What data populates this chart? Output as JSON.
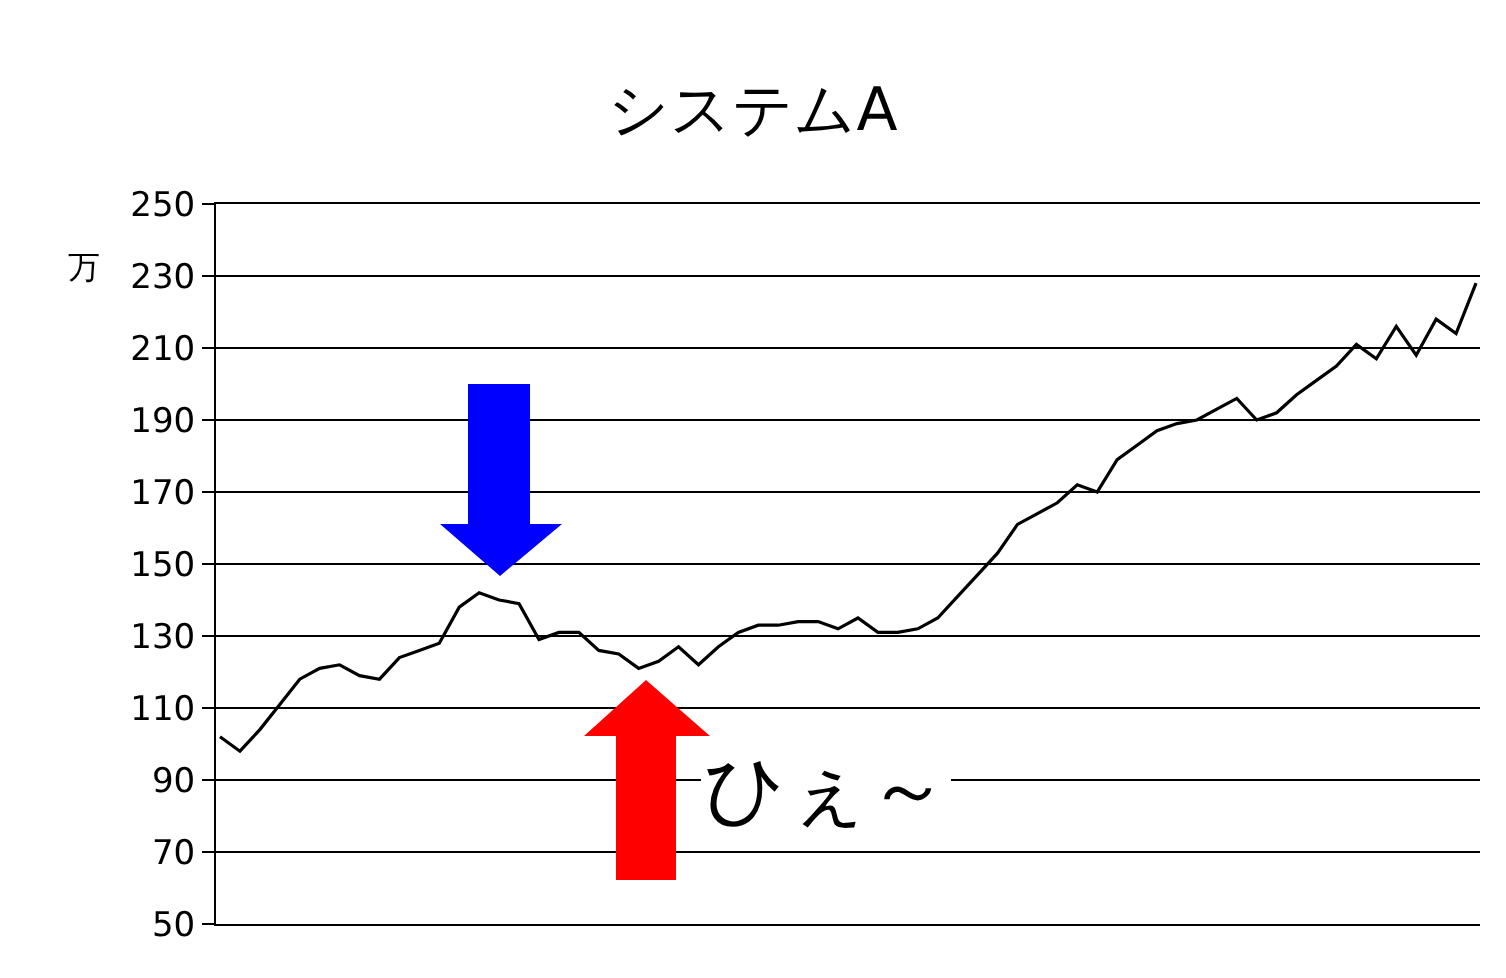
{
  "chart_data": {
    "type": "line",
    "title": "システムA",
    "ylabel": "万",
    "annotations": [
      "ひぇ～"
    ],
    "categories": [
      null,
      null,
      null,
      null,
      null,
      null,
      null,
      null,
      null,
      null,
      null,
      null,
      null,
      null,
      null,
      null,
      null,
      null,
      null,
      null,
      null,
      null,
      null,
      null,
      null,
      null,
      null,
      null,
      null,
      null,
      null,
      null,
      null,
      null,
      null,
      null,
      null,
      null,
      null,
      null,
      null,
      null,
      null,
      null,
      null,
      null,
      null,
      null,
      null,
      null,
      null,
      null,
      null,
      null,
      null,
      null,
      null,
      null,
      null,
      null,
      null,
      null,
      null,
      null
    ],
    "series": [
      {
        "color": "#000000",
        "values": [
          102,
          98,
          104,
          111,
          118,
          121,
          122,
          119,
          118,
          124,
          126,
          128,
          138,
          142,
          140,
          139,
          129,
          131,
          131,
          126,
          125,
          121,
          123,
          127,
          122,
          127,
          131,
          133,
          133,
          134,
          134,
          132,
          135,
          131,
          131,
          132,
          135,
          141,
          147,
          153,
          161,
          164,
          167,
          172,
          170,
          179,
          183,
          187,
          189,
          190,
          193,
          196,
          190,
          192,
          197,
          201,
          205,
          211,
          207,
          216,
          208,
          218,
          214,
          228
        ]
      }
    ],
    "ylim": [
      50,
      250
    ],
    "yticks": [
      50,
      70,
      90,
      110,
      130,
      150,
      170,
      190,
      210,
      230,
      250
    ],
    "grid": "y",
    "marker": "none",
    "line_style": "solid"
  }
}
